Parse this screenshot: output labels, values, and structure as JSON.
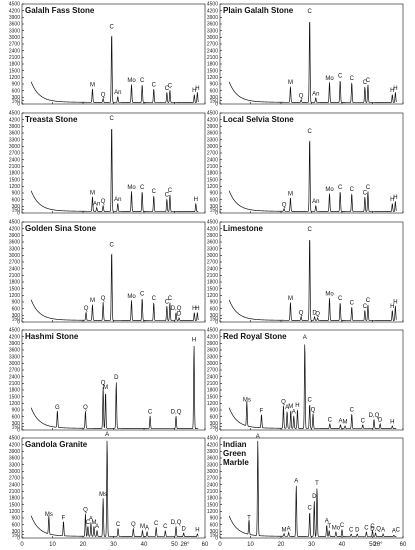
{
  "xlabel": "2θ°",
  "chart_data": [
    {
      "type": "line",
      "title": "Galalh Fass Stone",
      "xlim": [
        0,
        60
      ],
      "ylim": [
        0,
        4500
      ],
      "yticks": [
        0,
        150,
        300,
        600,
        900,
        1200,
        1500,
        1800,
        2100,
        2400,
        2700,
        3000,
        3300,
        3600,
        3900,
        4200,
        4500
      ],
      "peaks": [
        {
          "label": "M",
          "x": 23.1,
          "y": 700
        },
        {
          "label": "Q",
          "x": 26.6,
          "y": 250
        },
        {
          "label": "C",
          "x": 29.4,
          "y": 3300
        },
        {
          "label": "An",
          "x": 31.4,
          "y": 350
        },
        {
          "label": "Mo",
          "x": 35.9,
          "y": 900
        },
        {
          "label": "C",
          "x": 39.4,
          "y": 900
        },
        {
          "label": "C",
          "x": 43.2,
          "y": 700
        },
        {
          "label": "C",
          "x": 47.5,
          "y": 550
        },
        {
          "label": "C",
          "x": 48.5,
          "y": 650
        },
        {
          "label": "H",
          "x": 56.5,
          "y": 450
        },
        {
          "label": "H",
          "x": 57.5,
          "y": 550
        }
      ]
    },
    {
      "type": "line",
      "title": "Plain Galalh Stone",
      "xlim": [
        0,
        60
      ],
      "ylim": [
        0,
        4500
      ],
      "yticks": [
        0,
        150,
        300,
        600,
        900,
        1200,
        1500,
        1800,
        2100,
        2400,
        2700,
        3000,
        3300,
        3600,
        3900,
        4200,
        4500
      ],
      "peaks": [
        {
          "label": "M",
          "x": 23.1,
          "y": 800
        },
        {
          "label": "Q",
          "x": 26.6,
          "y": 200
        },
        {
          "label": "C",
          "x": 29.4,
          "y": 4000
        },
        {
          "label": "An",
          "x": 31.4,
          "y": 300
        },
        {
          "label": "Mo",
          "x": 35.9,
          "y": 1000
        },
        {
          "label": "C",
          "x": 39.4,
          "y": 1100
        },
        {
          "label": "C",
          "x": 43.2,
          "y": 1000
        },
        {
          "label": "C",
          "x": 47.5,
          "y": 800
        },
        {
          "label": "C",
          "x": 48.5,
          "y": 900
        },
        {
          "label": "H",
          "x": 56.5,
          "y": 450
        },
        {
          "label": "H",
          "x": 57.5,
          "y": 550
        }
      ]
    },
    {
      "type": "line",
      "title": "Treasta Stone",
      "xlim": [
        0,
        60
      ],
      "ylim": [
        0,
        4500
      ],
      "yticks": [
        0,
        150,
        300,
        600,
        900,
        1200,
        1500,
        1800,
        2100,
        2400,
        2700,
        3000,
        3300,
        3600,
        3900,
        4200,
        4500
      ],
      "peaks": [
        {
          "label": "M",
          "x": 23.1,
          "y": 750
        },
        {
          "label": "An",
          "x": 24.5,
          "y": 250
        },
        {
          "label": "Q",
          "x": 26.6,
          "y": 350
        },
        {
          "label": "C",
          "x": 29.4,
          "y": 4100
        },
        {
          "label": "An",
          "x": 31.4,
          "y": 450
        },
        {
          "label": "Mo",
          "x": 35.9,
          "y": 1000
        },
        {
          "label": "C",
          "x": 39.4,
          "y": 1000
        },
        {
          "label": "C",
          "x": 43.2,
          "y": 800
        },
        {
          "label": "C",
          "x": 47.5,
          "y": 650
        },
        {
          "label": "C",
          "x": 48.5,
          "y": 850
        },
        {
          "label": "H",
          "x": 57,
          "y": 450
        }
      ]
    },
    {
      "type": "line",
      "title": "Local Selvia Stone",
      "xlim": [
        0,
        60
      ],
      "ylim": [
        0,
        4500
      ],
      "yticks": [
        0,
        150,
        300,
        600,
        900,
        1200,
        1500,
        1800,
        2100,
        2400,
        2700,
        3000,
        3300,
        3600,
        3900,
        4200,
        4500
      ],
      "peaks": [
        {
          "label": "Q",
          "x": 21,
          "y": 200
        },
        {
          "label": "M",
          "x": 23.1,
          "y": 700
        },
        {
          "label": "C",
          "x": 29.4,
          "y": 3500
        },
        {
          "label": "An",
          "x": 31.4,
          "y": 350
        },
        {
          "label": "Mo",
          "x": 35.9,
          "y": 900
        },
        {
          "label": "C",
          "x": 39.4,
          "y": 1000
        },
        {
          "label": "C",
          "x": 43.2,
          "y": 900
        },
        {
          "label": "C",
          "x": 47.5,
          "y": 750
        },
        {
          "label": "C",
          "x": 48.5,
          "y": 1000
        },
        {
          "label": "H",
          "x": 56.5,
          "y": 450
        },
        {
          "label": "H",
          "x": 57.5,
          "y": 550
        }
      ]
    },
    {
      "type": "line",
      "title": "Golden Sina Stone",
      "xlim": [
        0,
        60
      ],
      "ylim": [
        0,
        4500
      ],
      "yticks": [
        0,
        150,
        300,
        600,
        900,
        1200,
        1500,
        1800,
        2100,
        2400,
        2700,
        3000,
        3300,
        3600,
        3900,
        4200,
        4500
      ],
      "peaks": [
        {
          "label": "Q",
          "x": 21,
          "y": 450
        },
        {
          "label": "M",
          "x": 23.1,
          "y": 800
        },
        {
          "label": "Q",
          "x": 26.6,
          "y": 900
        },
        {
          "label": "C",
          "x": 29.4,
          "y": 3300
        },
        {
          "label": "Mo",
          "x": 35.9,
          "y": 1000
        },
        {
          "label": "C",
          "x": 39.4,
          "y": 1100
        },
        {
          "label": "C",
          "x": 43.2,
          "y": 900
        },
        {
          "label": "C",
          "x": 47.5,
          "y": 750
        },
        {
          "label": "C",
          "x": 48.5,
          "y": 900
        },
        {
          "label": "D,Q",
          "x": 50.5,
          "y": 450
        },
        {
          "label": "D",
          "x": 51.5,
          "y": 200
        },
        {
          "label": "H",
          "x": 56.5,
          "y": 450
        },
        {
          "label": "H",
          "x": 57.5,
          "y": 450
        }
      ]
    },
    {
      "type": "line",
      "title": "Limestone",
      "xlim": [
        0,
        60
      ],
      "ylim": [
        0,
        4500
      ],
      "yticks": [
        0,
        150,
        300,
        600,
        900,
        1200,
        1500,
        1800,
        2100,
        2400,
        2700,
        3000,
        3300,
        3600,
        3900,
        4200,
        4500
      ],
      "peaks": [
        {
          "label": "M",
          "x": 23.1,
          "y": 900
        },
        {
          "label": "Q",
          "x": 26.6,
          "y": 250
        },
        {
          "label": "C",
          "x": 29.4,
          "y": 4000
        },
        {
          "label": "D",
          "x": 31,
          "y": 250
        },
        {
          "label": "Q",
          "x": 32,
          "y": 200
        },
        {
          "label": "Mo",
          "x": 35.9,
          "y": 1100
        },
        {
          "label": "C",
          "x": 39.4,
          "y": 900
        },
        {
          "label": "C",
          "x": 43.2,
          "y": 700
        },
        {
          "label": "C",
          "x": 47.5,
          "y": 550
        },
        {
          "label": "C",
          "x": 48.5,
          "y": 800
        },
        {
          "label": "H",
          "x": 56.5,
          "y": 550
        },
        {
          "label": "H",
          "x": 57.5,
          "y": 750
        }
      ]
    },
    {
      "type": "line",
      "title": "Hashmi Stone",
      "xlim": [
        0,
        60
      ],
      "ylim": [
        0,
        4500
      ],
      "yticks": [
        0,
        150,
        300,
        600,
        900,
        1200,
        1500,
        1800,
        2100,
        2400,
        2700,
        3000,
        3300,
        3600,
        3900,
        4200,
        4500
      ],
      "peaks": [
        {
          "label": "G",
          "x": 11.6,
          "y": 850
        },
        {
          "label": "Q",
          "x": 20.8,
          "y": 850
        },
        {
          "label": "Q",
          "x": 26.6,
          "y": 1950
        },
        {
          "label": "M",
          "x": 27.4,
          "y": 1750
        },
        {
          "label": "D",
          "x": 30.9,
          "y": 2200
        },
        {
          "label": "C",
          "x": 42,
          "y": 650
        },
        {
          "label": "D,Q",
          "x": 50.5,
          "y": 650
        },
        {
          "label": "H",
          "x": 56.4,
          "y": 3900
        }
      ]
    },
    {
      "type": "line",
      "title": "Red Royal Stone",
      "xlim": [
        0,
        60
      ],
      "ylim": [
        0,
        4500
      ],
      "yticks": [
        0,
        150,
        300,
        600,
        900,
        1200,
        1500,
        1800,
        2100,
        2400,
        2700,
        3000,
        3300,
        3600,
        3900,
        4200,
        4500
      ],
      "peaks": [
        {
          "label": "Ms",
          "x": 8.8,
          "y": 1200
        },
        {
          "label": "F",
          "x": 13.6,
          "y": 700
        },
        {
          "label": "Q",
          "x": 20.8,
          "y": 1100
        },
        {
          "label": "A",
          "x": 22,
          "y": 850
        },
        {
          "label": "M",
          "x": 23.2,
          "y": 900
        },
        {
          "label": "A",
          "x": 24.2,
          "y": 650
        },
        {
          "label": "H",
          "x": 25.4,
          "y": 950
        },
        {
          "label": "A",
          "x": 27.8,
          "y": 4000
        },
        {
          "label": "C",
          "x": 29.4,
          "y": 1200
        },
        {
          "label": "Q",
          "x": 30.5,
          "y": 750
        },
        {
          "label": "C",
          "x": 36,
          "y": 300
        },
        {
          "label": "A",
          "x": 39.5,
          "y": 250
        },
        {
          "label": "M",
          "x": 41,
          "y": 200
        },
        {
          "label": "C",
          "x": 43.2,
          "y": 750
        },
        {
          "label": "C",
          "x": 46.8,
          "y": 250
        },
        {
          "label": "D,Q",
          "x": 50.5,
          "y": 500
        },
        {
          "label": "D",
          "x": 52.5,
          "y": 300
        },
        {
          "label": "H",
          "x": 56.5,
          "y": 200
        }
      ]
    },
    {
      "type": "line",
      "title": "Gandola Granite",
      "xlim": [
        0,
        60
      ],
      "ylim": [
        0,
        4500
      ],
      "yticks": [
        0,
        150,
        300,
        600,
        900,
        1200,
        1500,
        1800,
        2100,
        2400,
        2700,
        3000,
        3300,
        3600,
        3900,
        4200,
        4500
      ],
      "peaks": [
        {
          "label": "Ms",
          "x": 8.8,
          "y": 900
        },
        {
          "label": "F",
          "x": 13.6,
          "y": 750
        },
        {
          "label": "Q",
          "x": 20.8,
          "y": 1100
        },
        {
          "label": "C",
          "x": 21.6,
          "y": 550
        },
        {
          "label": "A",
          "x": 22.6,
          "y": 700
        },
        {
          "label": "M",
          "x": 23.6,
          "y": 550
        },
        {
          "label": "A",
          "x": 24.6,
          "y": 350
        },
        {
          "label": "Ms",
          "x": 26.6,
          "y": 1800
        },
        {
          "label": "A",
          "x": 27.9,
          "y": 4500
        },
        {
          "label": "C",
          "x": 31.5,
          "y": 450
        },
        {
          "label": "Q",
          "x": 36.5,
          "y": 450
        },
        {
          "label": "M",
          "x": 39.5,
          "y": 350
        },
        {
          "label": "A",
          "x": 41,
          "y": 300
        },
        {
          "label": "C",
          "x": 44,
          "y": 500
        },
        {
          "label": "C",
          "x": 47,
          "y": 350
        },
        {
          "label": "D,Q",
          "x": 50.5,
          "y": 550
        },
        {
          "label": "D",
          "x": 53,
          "y": 250
        },
        {
          "label": "H",
          "x": 57.5,
          "y": 200
        }
      ]
    },
    {
      "type": "line",
      "title": "Indian Green Marble",
      "xlim": [
        0,
        60
      ],
      "ylim": [
        0,
        4500
      ],
      "yticks": [
        0,
        150,
        300,
        600,
        900,
        1200,
        1500,
        1800,
        2100,
        2400,
        2700,
        3000,
        3300,
        3600,
        3900,
        4200,
        4500
      ],
      "peaks": [
        {
          "label": "T",
          "x": 9.5,
          "y": 750
        },
        {
          "label": "A",
          "x": 12.4,
          "y": 4400
        },
        {
          "label": "M",
          "x": 21,
          "y": 200
        },
        {
          "label": "A",
          "x": 22.5,
          "y": 250
        },
        {
          "label": "A",
          "x": 25,
          "y": 2400
        },
        {
          "label": "C",
          "x": 29.4,
          "y": 1200
        },
        {
          "label": "D",
          "x": 30.9,
          "y": 1700
        },
        {
          "label": "T",
          "x": 31.8,
          "y": 2300
        },
        {
          "label": "A",
          "x": 35,
          "y": 600
        },
        {
          "label": "T",
          "x": 35.8,
          "y": 350
        },
        {
          "label": "Mo",
          "x": 38,
          "y": 300
        },
        {
          "label": "C",
          "x": 40,
          "y": 400
        },
        {
          "label": "C",
          "x": 43,
          "y": 200
        },
        {
          "label": "D",
          "x": 45,
          "y": 200
        },
        {
          "label": "C",
          "x": 48,
          "y": 300
        },
        {
          "label": "C",
          "x": 50,
          "y": 350
        },
        {
          "label": "D,Q",
          "x": 51,
          "y": 250
        },
        {
          "label": "A",
          "x": 53.5,
          "y": 200
        },
        {
          "label": "A",
          "x": 57,
          "y": 150
        },
        {
          "label": "C",
          "x": 58.3,
          "y": 200
        }
      ]
    }
  ]
}
